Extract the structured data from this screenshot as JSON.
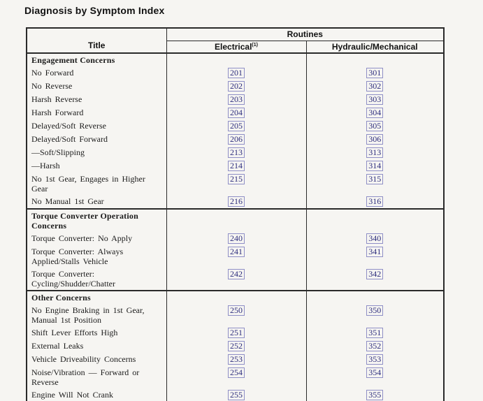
{
  "page": {
    "title": "Diagnosis by Symptom Index"
  },
  "colors": {
    "link_text": "#2d2d7d",
    "link_border": "#8f8fc6"
  },
  "table": {
    "columns": {
      "title": "Title",
      "routines": "Routines",
      "electrical": "Electrical",
      "electrical_footnote": "(1)",
      "hydraulic": "Hydraulic/Mechanical"
    },
    "sections": [
      {
        "header": "Engagement Concerns",
        "rows": [
          {
            "label": "No Forward",
            "electrical": "201",
            "hydraulic": "301"
          },
          {
            "label": "No Reverse",
            "electrical": "202",
            "hydraulic": "302"
          },
          {
            "label": "Harsh Reverse",
            "electrical": "203",
            "hydraulic": "303"
          },
          {
            "label": "Harsh Forward",
            "electrical": "204",
            "hydraulic": "304"
          },
          {
            "label": "Delayed/Soft Reverse",
            "electrical": "205",
            "hydraulic": "305"
          },
          {
            "label": "Delayed/Soft Forward",
            "electrical": "206",
            "hydraulic": "306"
          },
          {
            "label": "—Soft/Slipping",
            "electrical": "213",
            "hydraulic": "313"
          },
          {
            "label": "—Harsh",
            "electrical": "214",
            "hydraulic": "314"
          },
          {
            "label": "No 1st Gear, Engages in Higher Gear",
            "electrical": "215",
            "hydraulic": "315"
          },
          {
            "label": "No Manual 1st Gear",
            "electrical": "216",
            "hydraulic": "316"
          }
        ]
      },
      {
        "header": "Torque Converter Operation\nConcerns",
        "rows": [
          {
            "label": "Torque Converter: No Apply",
            "electrical": "240",
            "hydraulic": "340"
          },
          {
            "label": "Torque Converter: Always\nApplied/Stalls Vehicle",
            "electrical": "241",
            "hydraulic": "341"
          },
          {
            "label": "Torque Converter:\nCycling/Shudder/Chatter",
            "electrical": "242",
            "hydraulic": "342"
          }
        ]
      },
      {
        "header": "Other Concerns",
        "rows": [
          {
            "label": "No Engine Braking in 1st Gear,\nManual 1st Position",
            "electrical": "250",
            "hydraulic": "350"
          },
          {
            "label": "Shift Lever Efforts High",
            "electrical": "251",
            "hydraulic": "351"
          },
          {
            "label": "External Leaks",
            "electrical": "252",
            "hydraulic": "352"
          },
          {
            "label": "Vehicle Driveability Concerns",
            "electrical": "253",
            "hydraulic": "353"
          },
          {
            "label": "Noise/Vibration — Forward or\nReverse",
            "electrical": "254",
            "hydraulic": "354"
          },
          {
            "label": "Engine Will Not Crank",
            "electrical": "255",
            "hydraulic": "355"
          }
        ]
      }
    ]
  }
}
